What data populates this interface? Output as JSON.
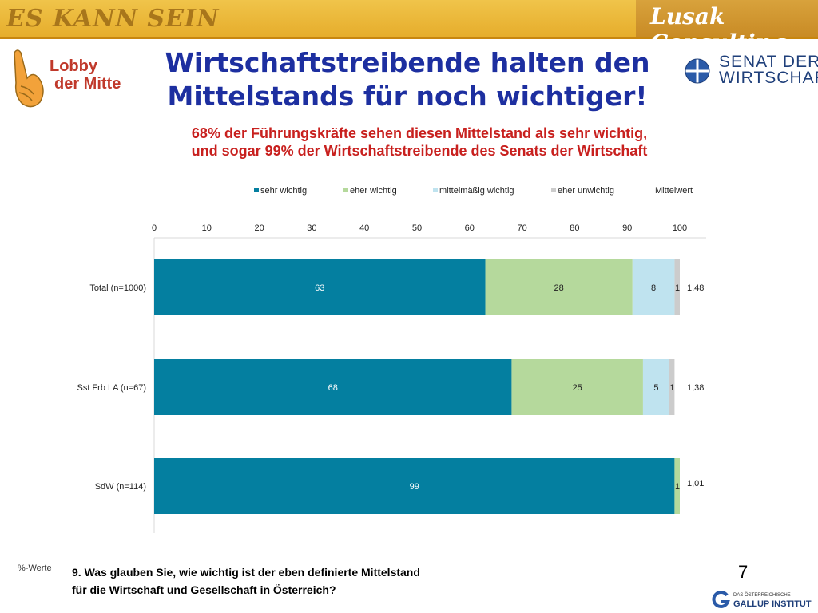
{
  "header": {
    "left_brand": "ES KANN SEIN",
    "right_brand": "Lusak Consulting"
  },
  "lobby": {
    "line1": "Lobby",
    "line2": "der Mitte"
  },
  "title_lines": [
    "Wirtschaftstreibende halten den",
    "Mittelstands für noch wichtiger!"
  ],
  "senat": {
    "line1": "SENAT DER",
    "line2": "WIRTSCHAFT"
  },
  "subtitle_lines": [
    "68% der Führungskräfte sehen diesen Mittelstand als sehr wichtig,",
    "und sogar 99% der Wirtschaftstreibende des Senats der Wirtschaft"
  ],
  "footer": {
    "percent_label": "%-Werte",
    "question_lines": [
      "9. Was glauben Sie, wie wichtig ist der eben definierte Mittelstand",
      "für die Wirtschaft und Gesellschaft in Österreich?"
    ],
    "page_number": "7",
    "gallup_small": "DAS ÖSTERREICHISCHE",
    "gallup_big": "GALLUP INSTITUT"
  },
  "chart_data": {
    "type": "bar",
    "orientation": "horizontal",
    "stacked": true,
    "xlim": [
      0,
      100
    ],
    "ticks": [
      0,
      10,
      20,
      30,
      40,
      50,
      60,
      70,
      80,
      90,
      100
    ],
    "categories": [
      "Total (n=1000)",
      "Sst Frb LA (n=67)",
      "SdW (n=114)"
    ],
    "series": [
      {
        "name": "sehr wichtig",
        "color": "#047fa0",
        "values": [
          63,
          68,
          99
        ]
      },
      {
        "name": "eher wichtig",
        "color": "#b5d99c",
        "values": [
          28,
          25,
          1
        ]
      },
      {
        "name": "mittelmäßig wichtig",
        "color": "#bfe3ef",
        "values": [
          8,
          5,
          0
        ]
      },
      {
        "name": "eher unwichtig",
        "color": "#cccccc",
        "values": [
          1,
          1,
          0
        ]
      }
    ],
    "extra_legend": "Mittelwert",
    "mittelwert": [
      "1,48",
      "1,38",
      "1,01"
    ],
    "value_labels": [
      [
        "63",
        "28",
        "8",
        "1"
      ],
      [
        "68",
        "25",
        "5",
        "1"
      ],
      [
        "99",
        "1",
        "",
        ""
      ]
    ],
    "legend_position": "top",
    "grid": false
  }
}
